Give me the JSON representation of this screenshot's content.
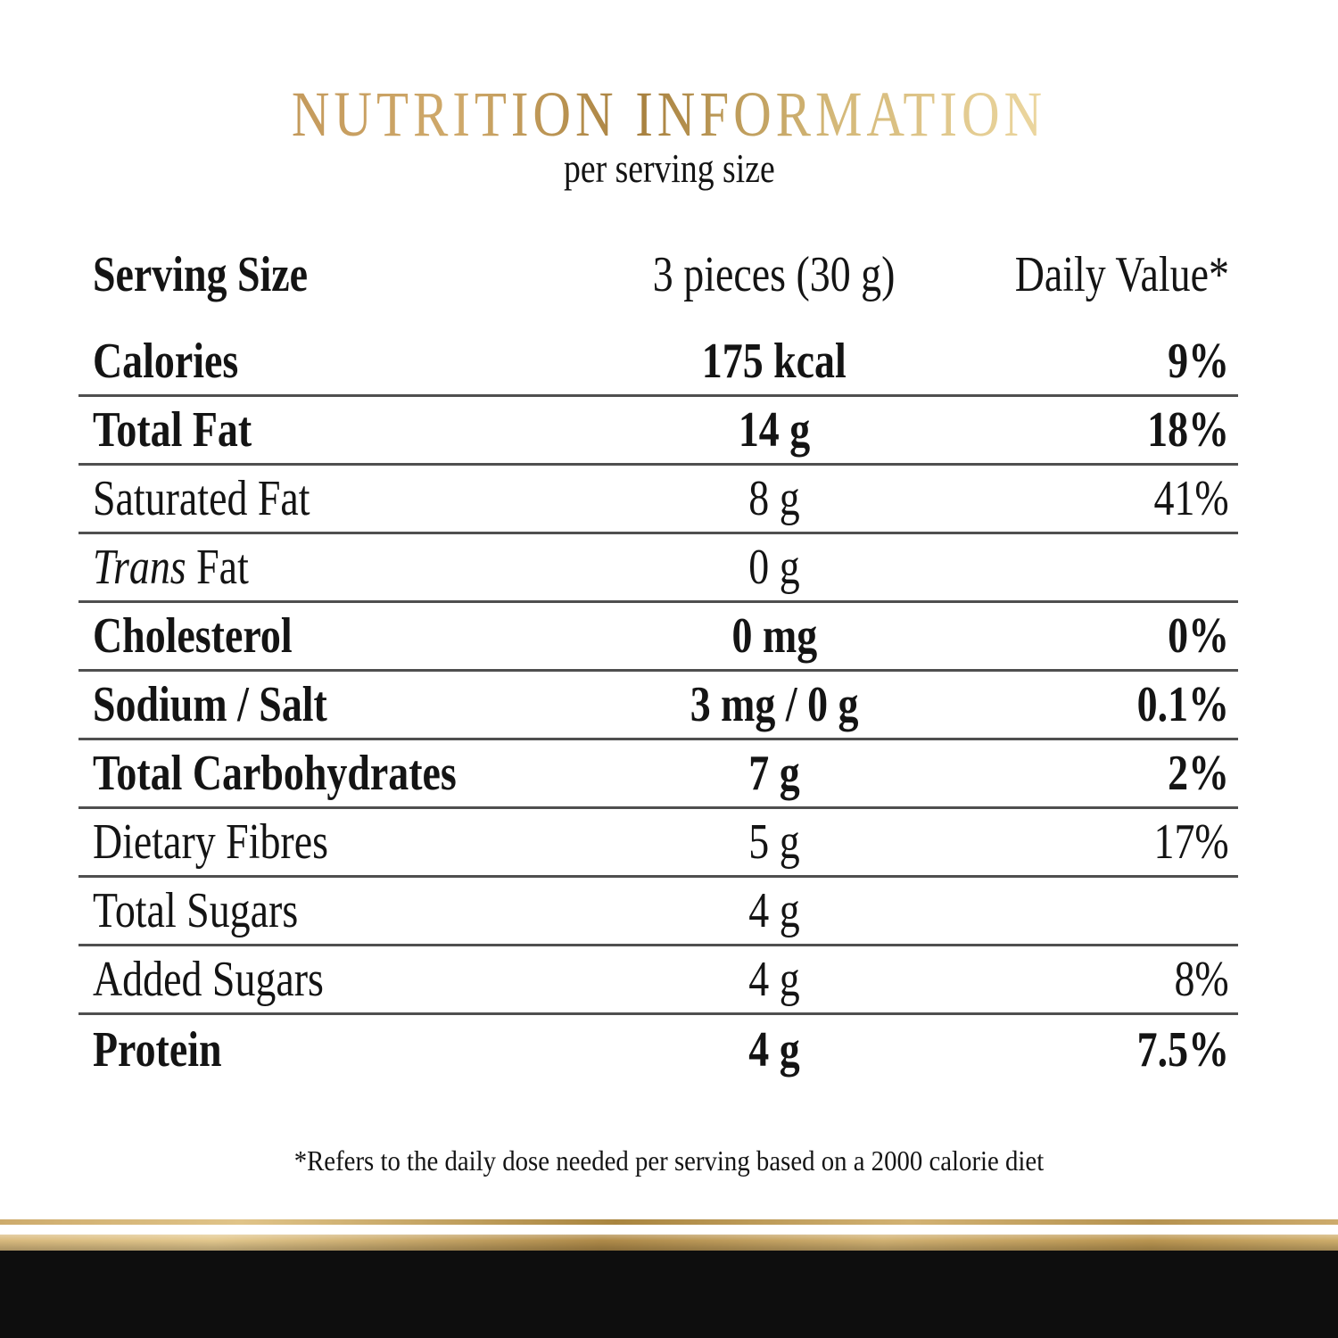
{
  "header": {
    "title": "NUTRITION INFORMATION",
    "subtitle": "per serving size"
  },
  "table": {
    "header_row": {
      "label": "Serving Size",
      "value": "3 pieces (30 g)",
      "daily_value": "Daily Value*"
    },
    "rows": [
      {
        "label": "Calories",
        "value": "175 kcal",
        "daily_value": "9%",
        "emphasis": "bold"
      },
      {
        "label": "Total Fat",
        "value": "14 g",
        "daily_value": "18%",
        "emphasis": "bold"
      },
      {
        "label": "Saturated Fat",
        "value": "8 g",
        "daily_value": "41%",
        "emphasis": "regular"
      },
      {
        "label": "Trans Fat",
        "italic_word": "Trans",
        "value": "0 g",
        "daily_value": "",
        "emphasis": "regular"
      },
      {
        "label": "Cholesterol",
        "value": "0 mg",
        "daily_value": "0%",
        "emphasis": "bold"
      },
      {
        "label": "Sodium / Salt",
        "value": "3 mg / 0 g",
        "daily_value": "0.1%",
        "emphasis": "bold"
      },
      {
        "label": "Total Carbohydrates",
        "value": "7 g",
        "daily_value": "2%",
        "emphasis": "bold"
      },
      {
        "label": "Dietary Fibres",
        "value": "5 g",
        "daily_value": "17%",
        "emphasis": "regular"
      },
      {
        "label": "Total Sugars",
        "value": "4 g",
        "daily_value": "",
        "emphasis": "regular"
      },
      {
        "label": "Added Sugars",
        "value": "4 g",
        "daily_value": "8%",
        "emphasis": "regular"
      },
      {
        "label": "Protein",
        "value": "4 g",
        "daily_value": "7.5%",
        "emphasis": "bold"
      }
    ]
  },
  "footnote": "*Refers to the daily dose needed per serving based on a 2000 calorie diet",
  "colors": {
    "title_gold_left": "#c49a5c",
    "title_gold_dark": "#a8813f",
    "title_gold_right": "#ecd7a0",
    "rule_gray": "#4f4f4f",
    "gold_bar": "#c2a05c",
    "black_bar": "#0e0e0e",
    "text": "#141414",
    "background": "#ffffff"
  }
}
